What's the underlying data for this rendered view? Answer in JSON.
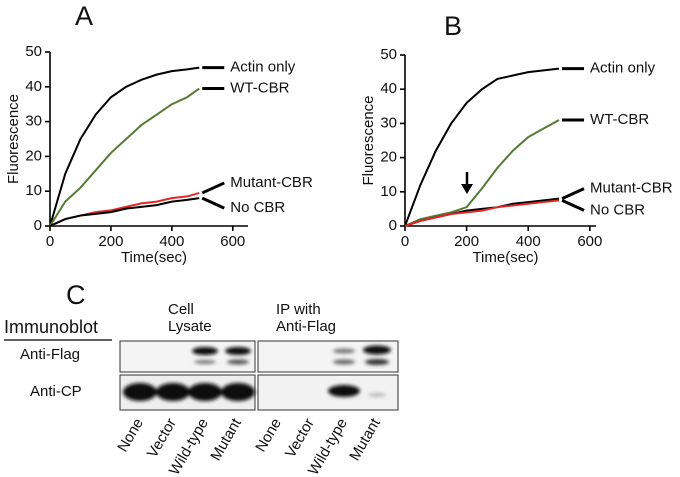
{
  "chart_data": [
    {
      "type": "line",
      "panel_label": "A",
      "x_label": "Time(sec)",
      "y_label": "Fluorescence",
      "xlim": [
        0,
        650
      ],
      "ylim": [
        0,
        50
      ],
      "xticks": [
        0,
        200,
        400,
        600
      ],
      "yticks": [
        0,
        10,
        20,
        30,
        40,
        50
      ],
      "x": [
        0,
        50,
        100,
        150,
        200,
        250,
        300,
        350,
        400,
        450,
        490
      ],
      "series": [
        {
          "name": "Actin only",
          "color": "#000000",
          "values": [
            0,
            15,
            25,
            32,
            37,
            40,
            42,
            43.5,
            44.5,
            45,
            45.5
          ]
        },
        {
          "name": "WT-CBR",
          "color": "#557a35",
          "values": [
            0,
            7,
            11,
            16,
            21,
            25,
            29,
            32,
            35,
            37,
            39.5
          ]
        },
        {
          "name": "Mutant-CBR",
          "color": "#e02828",
          "values": [
            0,
            2,
            3,
            4,
            4.5,
            5.5,
            6.5,
            7,
            8,
            8.5,
            9.5
          ]
        },
        {
          "name": "No CBR",
          "color": "#000000",
          "values": [
            0,
            2,
            3,
            3.5,
            4,
            5,
            5.5,
            6,
            7,
            7.5,
            8
          ]
        }
      ]
    },
    {
      "type": "line",
      "panel_label": "B",
      "x_label": "Time(sec)",
      "y_label": "Fluorescence",
      "xlim": [
        0,
        620
      ],
      "ylim": [
        0,
        50
      ],
      "xticks": [
        0,
        200,
        400,
        600
      ],
      "yticks": [
        0,
        10,
        20,
        30,
        40,
        50
      ],
      "x": [
        0,
        50,
        100,
        150,
        200,
        250,
        300,
        350,
        400,
        450,
        500
      ],
      "series": [
        {
          "name": "Actin only",
          "color": "#000000",
          "values": [
            0,
            12,
            22,
            30,
            36,
            40,
            43,
            44,
            45,
            45.5,
            46
          ]
        },
        {
          "name": "WT-CBR",
          "color": "#557a35",
          "values": [
            0,
            2,
            3,
            4,
            5.5,
            11,
            17,
            22,
            26,
            28.5,
            31
          ]
        },
        {
          "name": "Mutant-CBR",
          "color": "#000000",
          "values": [
            0,
            1.5,
            2.5,
            3.5,
            4.5,
            5,
            5.5,
            6.5,
            7,
            7.5,
            8
          ]
        },
        {
          "name": "No CBR",
          "color": "#e02828",
          "values": [
            0,
            1.5,
            2.5,
            3.5,
            4,
            4.5,
            5.5,
            6,
            6.5,
            7,
            7.5
          ]
        }
      ]
    }
  ],
  "blot": {
    "panel_label": "C",
    "title": "Immunoblot",
    "rows": [
      "Anti-Flag",
      "Anti-CP"
    ],
    "panels": [
      {
        "title_lines": [
          "Cell",
          "Lysate"
        ],
        "lanes": [
          "None",
          "Vector",
          "Wild-type",
          "Mutant"
        ]
      },
      {
        "title_lines": [
          "IP with",
          "Anti-Flag"
        ],
        "lanes": [
          "None",
          "Vector",
          "Wild-type",
          "Mutant"
        ]
      }
    ]
  }
}
